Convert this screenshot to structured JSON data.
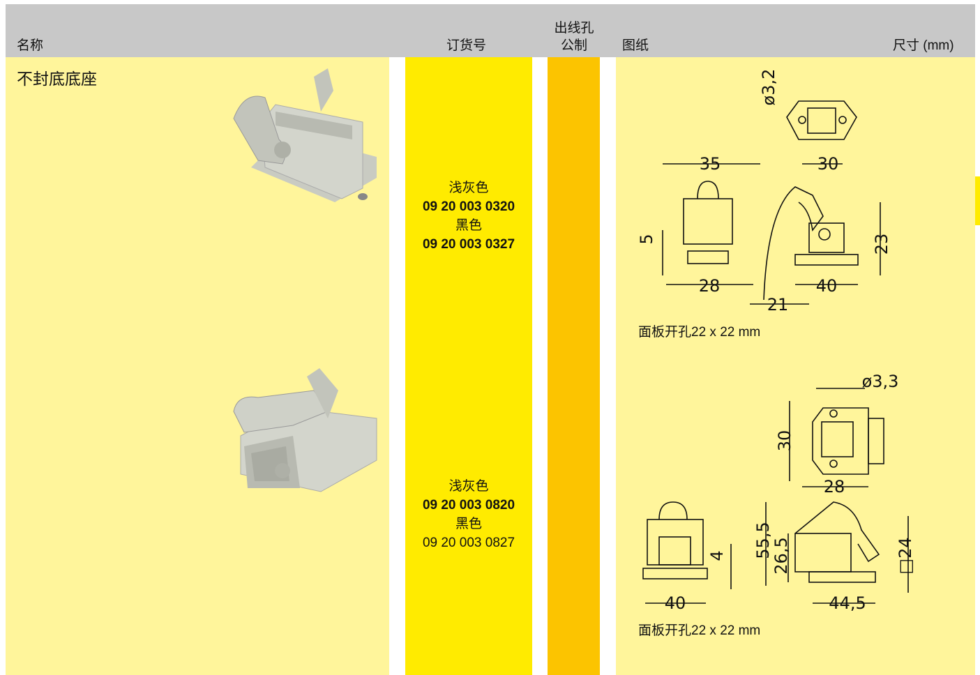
{
  "header": {
    "name": "名称",
    "order_no": "订货号",
    "cable_entry": [
      "出线孔",
      "公制"
    ],
    "drawing": "图纸",
    "dimensions": "尺寸 (mm)"
  },
  "section_title": "不封底底座",
  "rows": [
    {
      "order_lines": [
        "浅灰色",
        "09 20 003 0320",
        "黑色",
        "09 20 003 0327"
      ],
      "drawing_labels": [
        "ø3,2",
        "30",
        "35",
        "5",
        "28",
        "21",
        "40",
        "23"
      ],
      "note": "面板开孔22 x 22 mm"
    },
    {
      "order_lines": [
        "浅灰色",
        "09 20 003 0820",
        "黑色",
        "09 20 003 0827"
      ],
      "drawing_labels": [
        "ø3,3",
        "30",
        "28",
        "4",
        "40",
        "55,5",
        "26,5",
        "44,5",
        "□24"
      ],
      "note": "面板开孔22 x 22 mm"
    }
  ]
}
